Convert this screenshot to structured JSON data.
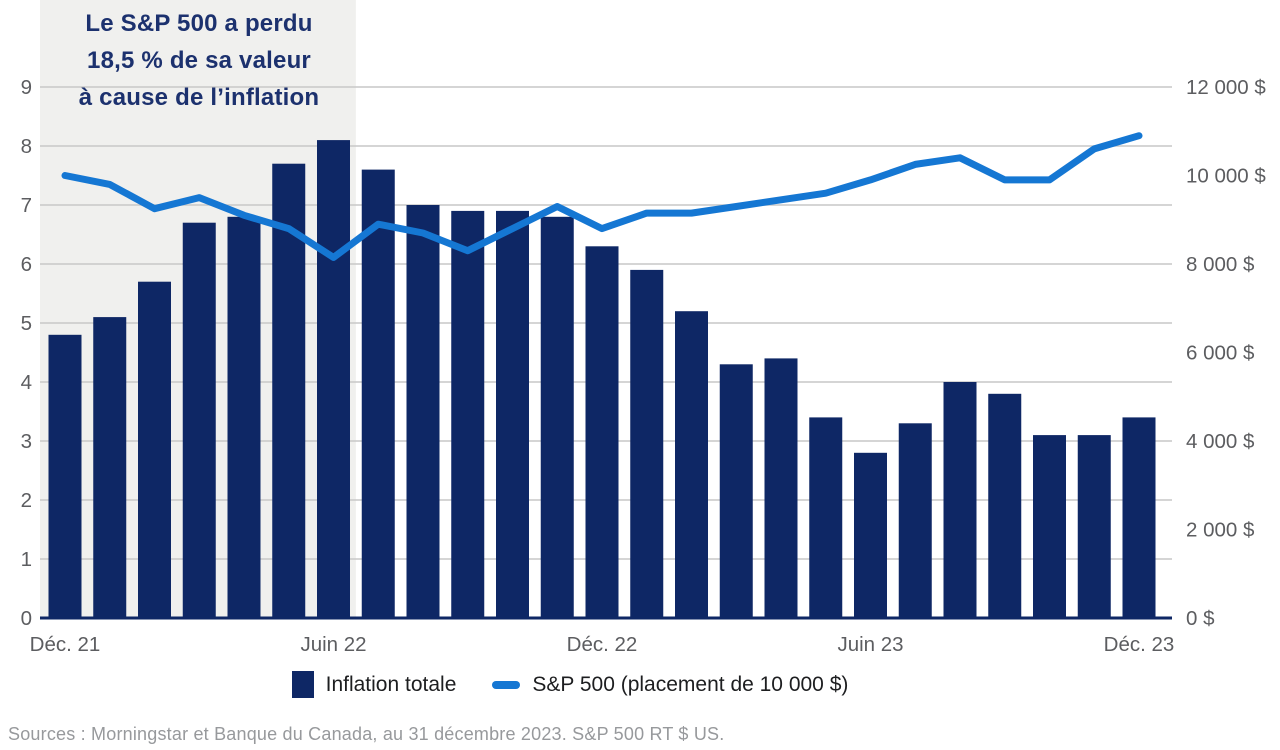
{
  "annotation": {
    "lines": [
      "Le S&P 500 a perdu",
      "18,5 % de sa valeur",
      "à cause de l’inflation"
    ]
  },
  "legend": {
    "items": [
      {
        "label": "Inflation totale",
        "swatch": "square"
      },
      {
        "label": "S&P 500 (placement de 10 000 $)",
        "swatch": "line"
      }
    ]
  },
  "source": "Sources : Morningstar et Banque du Canada, au 31 décembre 2023. S&P 500 RT $ US.",
  "colors": {
    "bar": "#0e2765",
    "line": "#1577d3",
    "grid": "#c7c7c7",
    "axis_line": "#0e2765",
    "axis_text": "#5c5d60",
    "panel": "#f0f0ee",
    "annotation_text": "#1c316e",
    "legend_text": "#1d1e20",
    "source_text": "#97999c"
  },
  "chart_data": {
    "type": "bar+line combo, dual axis",
    "n_points": 25,
    "x_tick_labels": [
      {
        "index": 0,
        "label": "Déc. 21"
      },
      {
        "index": 6,
        "label": "Juin 22"
      },
      {
        "index": 12,
        "label": "Déc. 22"
      },
      {
        "index": 18,
        "label": "Juin 23"
      },
      {
        "index": 24,
        "label": "Déc. 23"
      }
    ],
    "highlight_band": {
      "start_index": 0,
      "end_index": 6,
      "note": "gray panel behind Déc. 21 – Juin 22 period"
    },
    "left_axis": {
      "title": "Inflation (%)",
      "min": 0,
      "max": 9,
      "step": 1,
      "tick_labels": [
        "0",
        "1",
        "2",
        "3",
        "4",
        "5",
        "6",
        "7",
        "8",
        "9"
      ]
    },
    "right_axis": {
      "title": "Valeur du placement ($)",
      "min": 0,
      "max": 12000,
      "step": 2000,
      "tick_labels": [
        "0 $",
        "2 000 $",
        "4 000 $",
        "6 000 $",
        "8 000 $",
        "10 000 $",
        "12 000 $"
      ]
    },
    "series": [
      {
        "name": "Inflation totale",
        "type": "bar",
        "axis": "left",
        "values": [
          4.8,
          5.1,
          5.7,
          6.7,
          6.8,
          7.7,
          8.1,
          7.6,
          7.0,
          6.9,
          6.9,
          6.8,
          6.3,
          5.9,
          5.2,
          4.3,
          4.4,
          3.4,
          2.8,
          3.3,
          4.0,
          3.8,
          3.1,
          3.1,
          3.4
        ]
      },
      {
        "name": "S&P 500 (placement de 10 000 $)",
        "type": "line",
        "axis": "right",
        "values": [
          10000,
          9800,
          9250,
          9500,
          9100,
          8800,
          8150,
          8900,
          8700,
          8300,
          8800,
          9300,
          8800,
          9150,
          9150,
          9300,
          9450,
          9600,
          9900,
          10250,
          10400,
          9900,
          9900,
          10600,
          10900
        ]
      }
    ],
    "grid": "horizontal gridlines at each left-axis integer",
    "legend_position": "bottom center"
  }
}
